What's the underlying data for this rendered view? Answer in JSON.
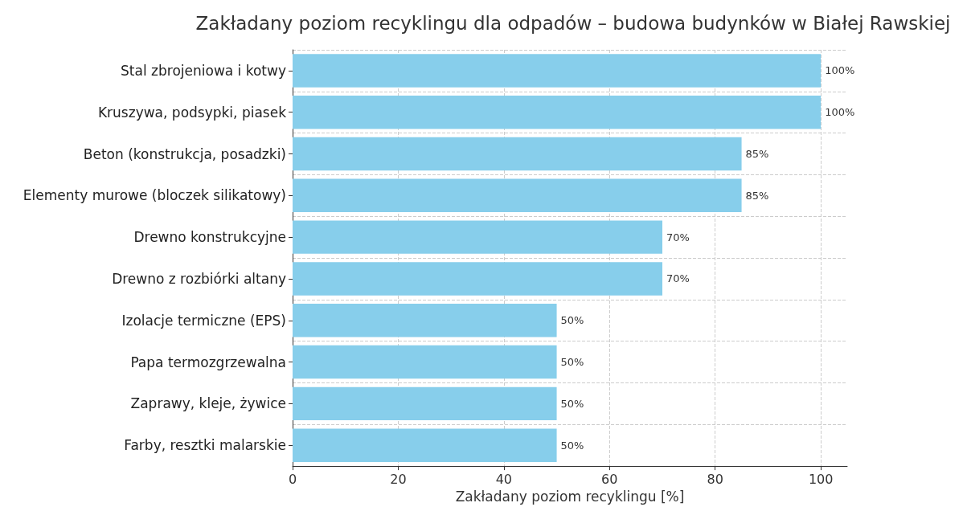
{
  "chart_data": {
    "type": "bar",
    "orientation": "horizontal",
    "title": "Zakładany poziom recyklingu dla odpadów – budowa budynków w Białej Rawskiej",
    "xlabel": "Zakładany poziom recyklingu [%]",
    "categories": [
      "Stal zbrojeniowa i kotwy",
      "Kruszywa, podsypki, piasek",
      "Beton (konstrukcja, posadzki)",
      "Elementy murowe (bloczek silikatowy)",
      "Drewno konstrukcyjne",
      "Drewno z rozbiórki altany",
      "Izolacje termiczne (EPS)",
      "Papa termozgrzewalna",
      "Zaprawy, kleje, żywice",
      "Farby, resztki malarskie"
    ],
    "values": [
      100,
      100,
      85,
      85,
      70,
      70,
      50,
      50,
      50,
      50
    ],
    "value_labels": [
      "100%",
      "100%",
      "85%",
      "85%",
      "70%",
      "70%",
      "50%",
      "50%",
      "50%",
      "50%"
    ],
    "color": "#87ceeb",
    "xlim": [
      0,
      105
    ],
    "xticks": [
      0,
      20,
      40,
      60,
      80,
      100
    ],
    "grid": true
  }
}
